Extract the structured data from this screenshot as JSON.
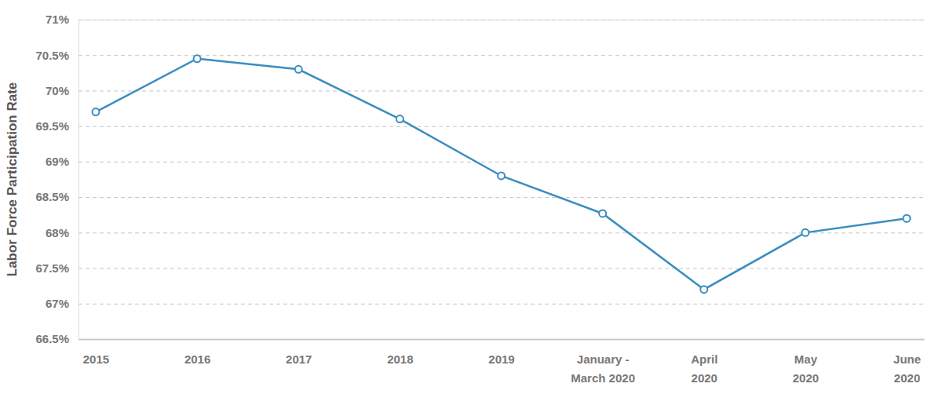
{
  "chart_data": {
    "type": "line",
    "y_label": "Labor Force Participation Rate",
    "categories": [
      "2015",
      "2016",
      "2017",
      "2018",
      "2019",
      "January -\nMarch 2020",
      "April\n2020",
      "May\n2020",
      "June\n2020"
    ],
    "values": [
      69.7,
      70.45,
      70.3,
      69.6,
      68.8,
      68.27,
      67.2,
      68.0,
      68.2
    ],
    "color": "#3a8dc0",
    "marker": "circle",
    "line_style": "solid",
    "ylim": [
      66.5,
      71
    ],
    "yticks": [
      {
        "value": 66.5,
        "label": "66.5%"
      },
      {
        "value": 67,
        "label": "67%"
      },
      {
        "value": 67.5,
        "label": "67.5%"
      },
      {
        "value": 68,
        "label": "68%"
      },
      {
        "value": 68.5,
        "label": "68.5%"
      },
      {
        "value": 69,
        "label": "69%"
      },
      {
        "value": 69.5,
        "label": "69.5%"
      },
      {
        "value": 70,
        "label": "70%"
      },
      {
        "value": 70.5,
        "label": "70.5%"
      },
      {
        "value": 71,
        "label": "71%"
      }
    ],
    "grid": true
  }
}
